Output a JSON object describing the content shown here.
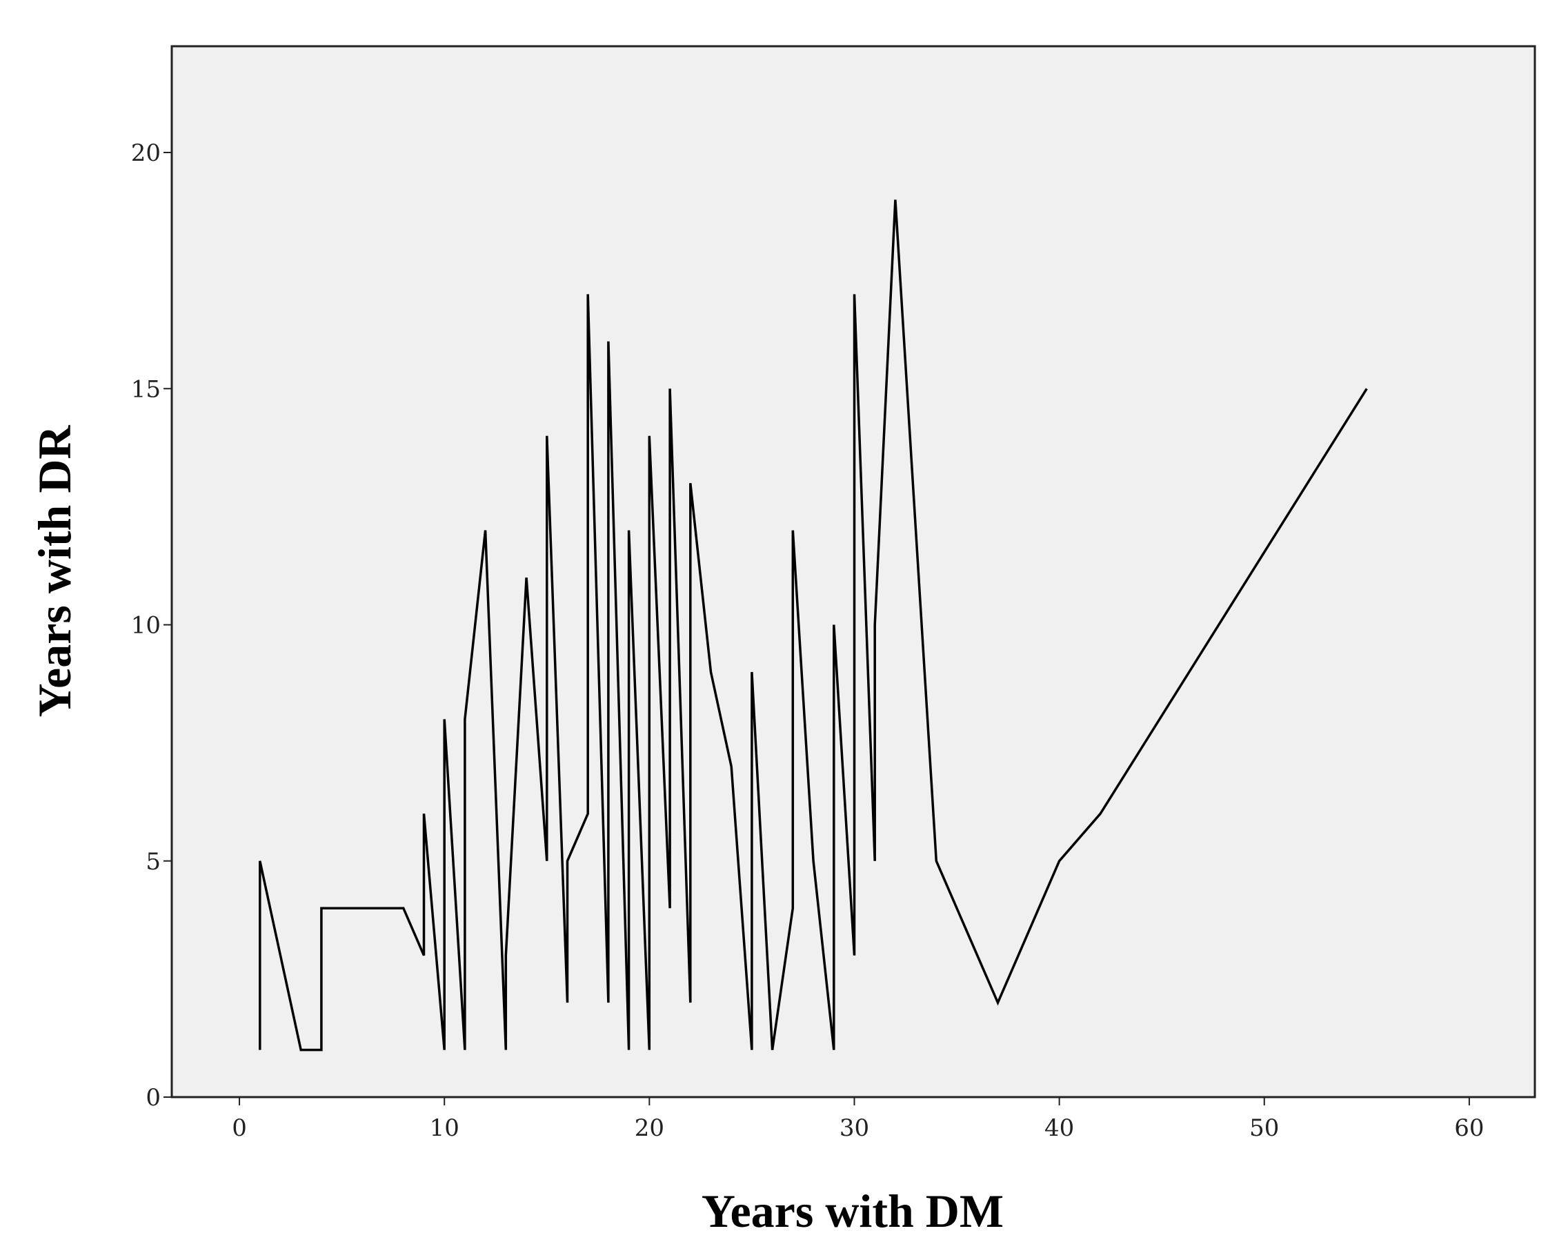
{
  "chart_data": {
    "type": "line",
    "x_label": "Years with DM",
    "y_label": "Years with DR",
    "x": [
      1,
      1,
      3,
      4,
      4,
      8,
      9,
      9,
      10,
      10,
      11,
      11,
      12,
      13,
      13,
      14,
      15,
      15,
      16,
      16,
      17,
      17,
      18,
      18,
      19,
      19,
      20,
      20,
      21,
      21,
      22,
      22,
      23,
      24,
      25,
      25,
      26,
      27,
      27,
      28,
      29,
      29,
      30,
      30,
      31,
      31,
      32,
      34,
      37,
      40,
      42,
      55
    ],
    "values": [
      1,
      5,
      1,
      1,
      4,
      4,
      3,
      6,
      1,
      8,
      1,
      8,
      12,
      1,
      3,
      11,
      5,
      14,
      2,
      5,
      6,
      17,
      2,
      16,
      1,
      12,
      1,
      14,
      4,
      15,
      2,
      13,
      9,
      7,
      1,
      9,
      1,
      4,
      12,
      5,
      1,
      10,
      3,
      17,
      5,
      10,
      19,
      5,
      2,
      5,
      6,
      15
    ],
    "color": "#000000",
    "xlim": [
      -3.3,
      63.2
    ],
    "xticks": [
      0,
      10,
      20,
      30,
      40,
      50,
      60
    ],
    "ylim": [
      0,
      22.25
    ],
    "yticks": [
      0,
      5,
      10,
      15,
      20
    ]
  }
}
